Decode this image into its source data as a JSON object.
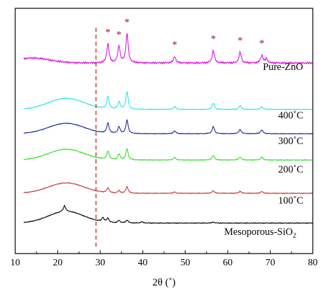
{
  "chart_data": {
    "type": "line",
    "title": "",
    "xlabel": "2θ (˚)",
    "ylabel": "",
    "xlim": [
      10,
      80
    ],
    "xticks": [
      "10",
      "20",
      "30",
      "40",
      "50",
      "60",
      "70",
      "80"
    ],
    "yticks_shown": false,
    "grid": false,
    "reference_line": {
      "x": 29,
      "style": "dashed",
      "color": "#c0392b"
    },
    "peak_markers": {
      "symbol": "*",
      "color": "#a0182a",
      "x": [
        31.8,
        34.4,
        36.3,
        47.5,
        56.6,
        62.9,
        68.0
      ]
    },
    "series": [
      {
        "name": "Pure-ZnO",
        "label_main": "Pure-ZnO",
        "label_sub": "",
        "color": "#e010e0",
        "baseline": 91,
        "broad_hump": {
          "center": 14,
          "height": 0.6
        },
        "peaks": [
          [
            31.8,
            2.3
          ],
          [
            34.4,
            2.0
          ],
          [
            36.3,
            3.5
          ],
          [
            47.5,
            0.8
          ],
          [
            56.6,
            1.5
          ],
          [
            62.9,
            1.3
          ],
          [
            68.0,
            0.95
          ],
          [
            69.1,
            0.5
          ]
        ]
      },
      {
        "name": "400˚C",
        "label_main": "400˚C",
        "label_sub": "",
        "color": "#28e5ea",
        "baseline": 158,
        "broad_hump": {
          "center": 22,
          "height": 1.35
        },
        "peaks": [
          [
            31.8,
            1.5
          ],
          [
            34.4,
            0.9
          ],
          [
            36.3,
            2.1
          ],
          [
            47.5,
            0.35
          ],
          [
            56.6,
            0.75
          ],
          [
            62.9,
            0.45
          ],
          [
            68.0,
            0.35
          ]
        ]
      },
      {
        "name": "300˚C",
        "label_main": "300˚C",
        "label_sub": "",
        "color": "#1a2aa0",
        "baseline": 193,
        "broad_hump": {
          "center": 22,
          "height": 1.25
        },
        "peaks": [
          [
            31.8,
            1.2
          ],
          [
            34.4,
            0.8
          ],
          [
            36.3,
            1.6
          ],
          [
            47.5,
            0.35
          ],
          [
            56.6,
            0.85
          ],
          [
            62.9,
            0.5
          ],
          [
            68.0,
            0.45
          ]
        ]
      },
      {
        "name": "200˚C",
        "label_main": "200˚C",
        "label_sub": "",
        "color": "#2ee024",
        "baseline": 231,
        "broad_hump": {
          "center": 22,
          "height": 1.3
        },
        "peaks": [
          [
            31.8,
            1.0
          ],
          [
            34.4,
            0.7
          ],
          [
            36.3,
            1.35
          ],
          [
            47.5,
            0.3
          ],
          [
            56.6,
            0.55
          ],
          [
            62.9,
            0.35
          ],
          [
            68.0,
            0.35
          ]
        ]
      },
      {
        "name": "100˚C",
        "label_main": "100˚C",
        "label_sub": "",
        "color": "#c8343c",
        "baseline": 279,
        "broad_hump": {
          "center": 22,
          "height": 1.25
        },
        "peaks": [
          [
            31.8,
            0.6
          ],
          [
            34.4,
            0.3
          ],
          [
            36.3,
            0.8
          ],
          [
            47.5,
            0.15
          ],
          [
            56.6,
            0.3
          ],
          [
            62.9,
            0.25
          ],
          [
            68.0,
            0.2
          ]
        ]
      },
      {
        "name": "Mesoporous-SiO2",
        "label_main": "Mesoporous-SiO",
        "label_sub": "2",
        "color": "#000000",
        "baseline": 322,
        "broad_hump": {
          "center": 22,
          "height": 1.4
        },
        "peaks": [
          [
            21.6,
            0.7
          ],
          [
            30.6,
            0.5
          ],
          [
            31.8,
            0.5
          ],
          [
            34.4,
            0.3
          ],
          [
            36.3,
            0.35
          ],
          [
            39.8,
            0.15
          ],
          [
            56.6,
            0.12
          ]
        ]
      }
    ]
  }
}
